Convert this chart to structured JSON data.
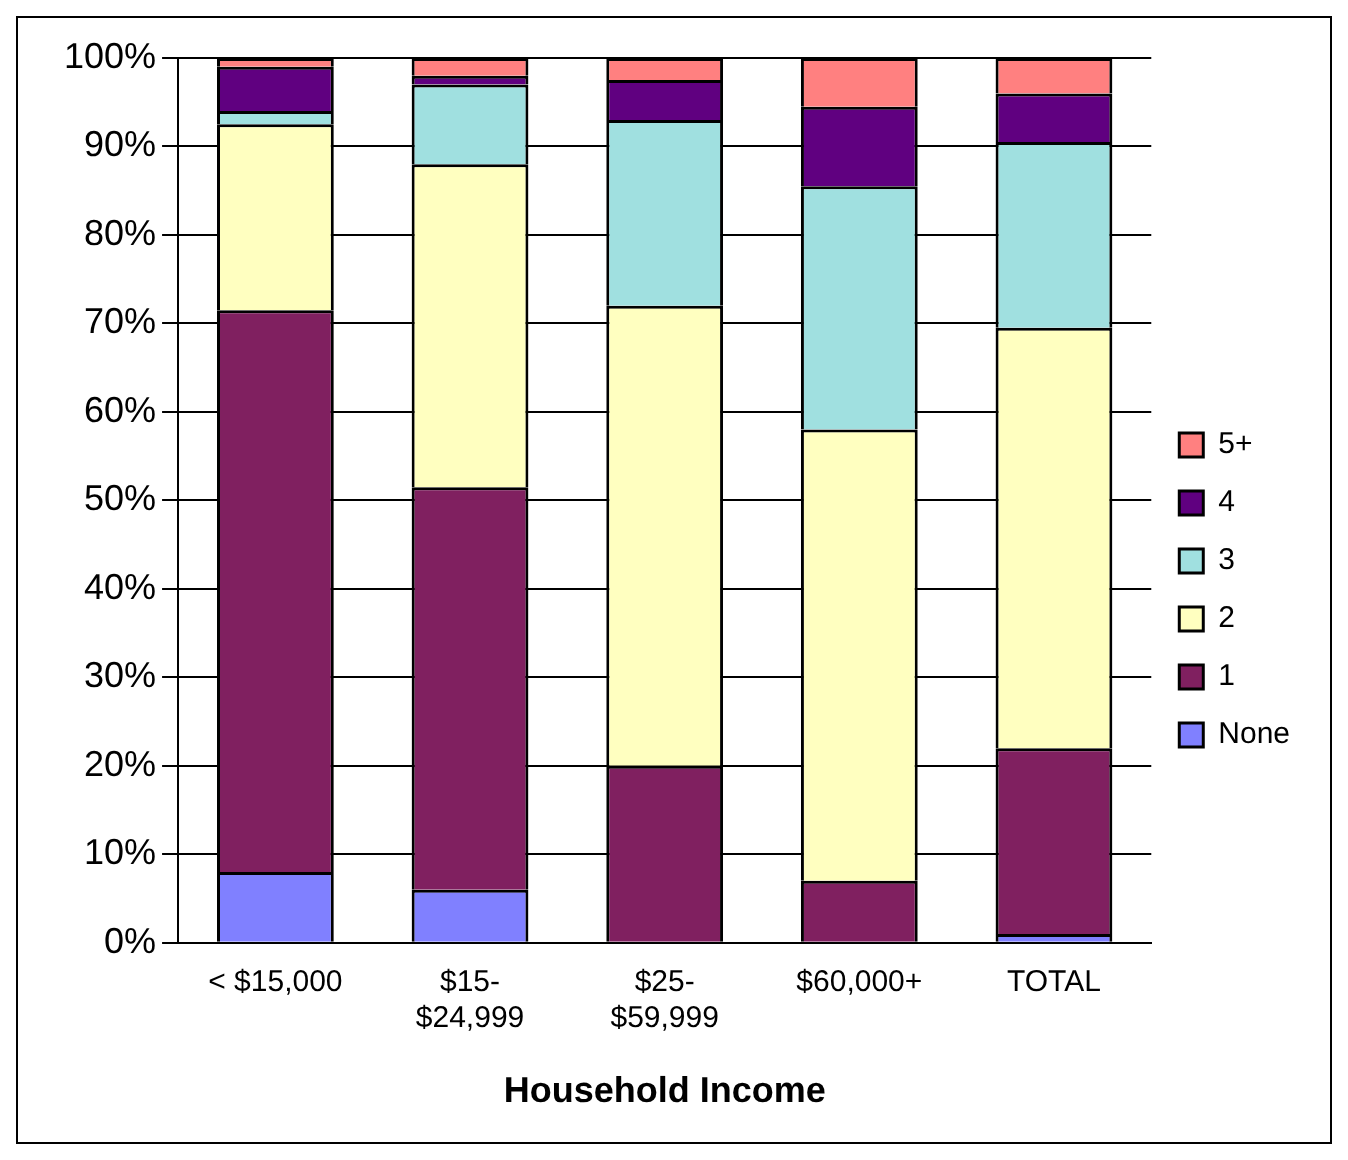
{
  "chart_data": {
    "type": "bar",
    "stacked": true,
    "xlabel": "Household Income",
    "categories": [
      "< $15,000",
      "$15-$24,999",
      "$25-$59,999",
      "$60,000+",
      "TOTAL"
    ],
    "series": [
      {
        "name": "None",
        "color": "#8080ff",
        "values": [
          8,
          6,
          0,
          0,
          1
        ]
      },
      {
        "name": "1",
        "color": "#802060",
        "values": [
          63.5,
          45.5,
          20,
          7,
          21
        ]
      },
      {
        "name": "2",
        "color": "#ffffc0",
        "values": [
          21,
          36.5,
          52,
          51,
          47.5
        ]
      },
      {
        "name": "3",
        "color": "#a0e0e0",
        "values": [
          1.5,
          9,
          21,
          27.5,
          21
        ]
      },
      {
        "name": "4",
        "color": "#600080",
        "values": [
          5,
          1,
          4.5,
          9,
          5.5
        ]
      },
      {
        "name": "5+",
        "color": "#ff8080",
        "values": [
          1,
          2,
          2.5,
          5.5,
          4
        ]
      }
    ],
    "ylim": [
      0,
      100
    ],
    "yticks": [
      {
        "value": 0,
        "label": "0%"
      },
      {
        "value": 10,
        "label": "10%"
      },
      {
        "value": 20,
        "label": "20%"
      },
      {
        "value": 30,
        "label": "30%"
      },
      {
        "value": 40,
        "label": "40%"
      },
      {
        "value": 50,
        "label": "50%"
      },
      {
        "value": 60,
        "label": "60%"
      },
      {
        "value": 70,
        "label": "70%"
      },
      {
        "value": 80,
        "label": "80%"
      },
      {
        "value": 90,
        "label": "90%"
      },
      {
        "value": 100,
        "label": "100%"
      }
    ],
    "grid": "y",
    "legend": "right"
  }
}
